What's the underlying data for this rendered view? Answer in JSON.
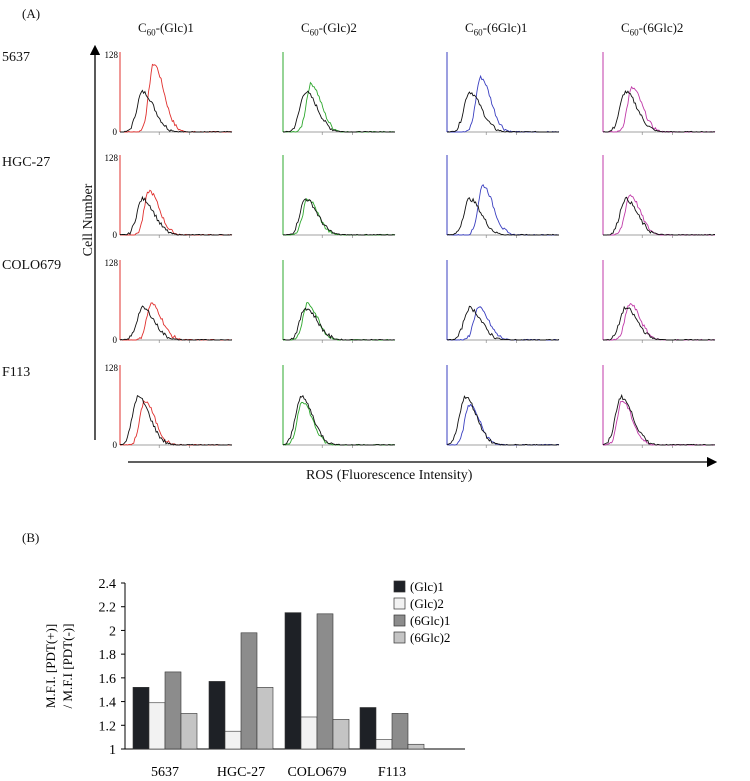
{
  "panel_a": {
    "label": "(A)",
    "y_axis_title": "Cell Number",
    "x_axis_title": "ROS (Fluorescence Intensity)",
    "y_tick_max": "128",
    "y_tick_min": "0",
    "columns": [
      {
        "prefix": "C",
        "sub": "60",
        "suffix": "-(Glc)1",
        "color": "#e0302e"
      },
      {
        "prefix": "C",
        "sub": "60",
        "suffix": "-(Glc)2",
        "color": "#2ea82e"
      },
      {
        "prefix": "C",
        "sub": "60",
        "suffix": "-(6Glc)1",
        "color": "#3a3fc0"
      },
      {
        "prefix": "C",
        "sub": "60",
        "suffix": "-(6Glc)2",
        "color": "#c03aa8"
      }
    ],
    "rows": [
      "5637",
      "HGC-27",
      "COLO679",
      "F113"
    ],
    "control_color": "#111111"
  },
  "chart_data": {
    "type": "bar",
    "panel_label": "(B)",
    "categories": [
      "5637",
      "HGC-27",
      "COLO679",
      "F113"
    ],
    "series": [
      {
        "name": "(Glc)1",
        "values": [
          1.52,
          1.57,
          2.15,
          1.35
        ],
        "color": "#1e2126"
      },
      {
        "name": "(Glc)2",
        "values": [
          1.39,
          1.15,
          1.27,
          1.08
        ],
        "color": "#f2f2f2"
      },
      {
        "name": "(6Glc)1",
        "values": [
          1.65,
          1.98,
          2.14,
          1.3
        ],
        "color": "#8c8c8c"
      },
      {
        "name": "(6Glc)2",
        "values": [
          1.3,
          1.52,
          1.25,
          1.04
        ],
        "color": "#c4c4c4"
      }
    ],
    "ylabel_line1": "M.F.I. [PDT(+)]",
    "ylabel_line2": "/ M.F.I [PDT(-)]",
    "ylim": [
      1,
      2.4
    ],
    "yticks": [
      "1",
      "1.2",
      "1.4",
      "1.6",
      "1.8",
      "2",
      "2.2",
      "2.4"
    ],
    "legend_position": "top-right"
  }
}
